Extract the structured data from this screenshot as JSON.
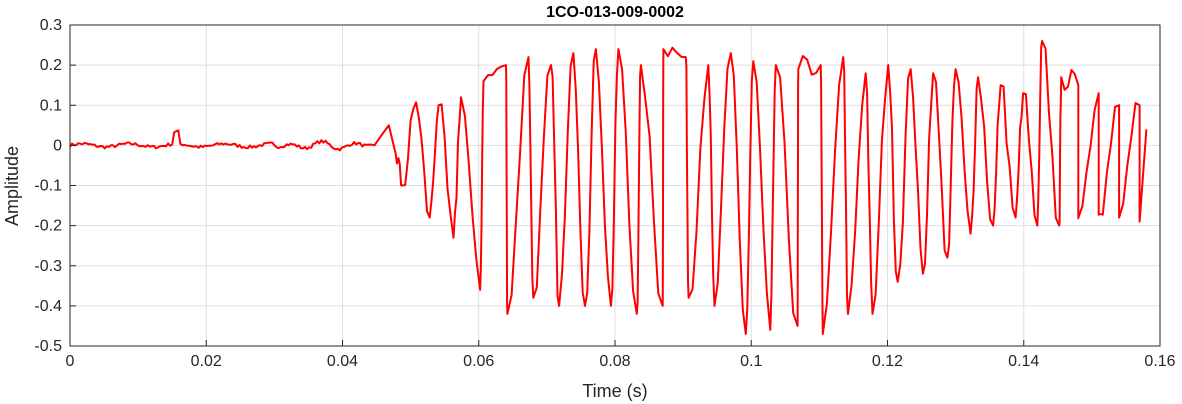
{
  "chart_data": {
    "type": "line",
    "title": "1CO-013-009-0002",
    "xlabel": "Time (s)",
    "ylabel": "Amplitude",
    "xlim": [
      0,
      0.16
    ],
    "ylim": [
      -0.5,
      0.3
    ],
    "xticks": [
      "0",
      "0.02",
      "0.04",
      "0.06",
      "0.08",
      "0.1",
      "0.12",
      "0.14",
      "0.16"
    ],
    "yticks": [
      "0.3",
      "0.2",
      "0.1",
      "0",
      "-0.1",
      "-0.2",
      "-0.3",
      "-0.4",
      "-0.5"
    ],
    "grid": true,
    "series_color": "#ff0000",
    "x_end": 0.158,
    "waveform_peaks": [
      {
        "x": 0.0508,
        "y": 0.107
      },
      {
        "x": 0.0541,
        "y": 0.1
      },
      {
        "x": 0.0574,
        "y": 0.12
      },
      {
        "x": 0.0607,
        "y": 0.16
      },
      {
        "x": 0.064,
        "y": 0.2
      },
      {
        "x": 0.0673,
        "y": 0.22
      },
      {
        "x": 0.0706,
        "y": 0.2
      },
      {
        "x": 0.0739,
        "y": 0.23
      },
      {
        "x": 0.0772,
        "y": 0.24
      },
      {
        "x": 0.0805,
        "y": 0.24
      },
      {
        "x": 0.0838,
        "y": 0.2
      },
      {
        "x": 0.0871,
        "y": 0.24
      },
      {
        "x": 0.0904,
        "y": 0.22
      },
      {
        "x": 0.0937,
        "y": 0.2
      },
      {
        "x": 0.097,
        "y": 0.23
      },
      {
        "x": 0.1003,
        "y": 0.21
      },
      {
        "x": 0.1036,
        "y": 0.2
      },
      {
        "x": 0.1069,
        "y": 0.19
      },
      {
        "x": 0.1102,
        "y": 0.2
      },
      {
        "x": 0.1135,
        "y": 0.22
      },
      {
        "x": 0.1168,
        "y": 0.18
      },
      {
        "x": 0.1201,
        "y": 0.2
      },
      {
        "x": 0.1234,
        "y": 0.19
      },
      {
        "x": 0.1267,
        "y": 0.18
      },
      {
        "x": 0.13,
        "y": 0.19
      },
      {
        "x": 0.1333,
        "y": 0.17
      },
      {
        "x": 0.1366,
        "y": 0.15
      },
      {
        "x": 0.1399,
        "y": 0.13
      },
      {
        "x": 0.1427,
        "y": 0.26
      },
      {
        "x": 0.1455,
        "y": 0.17
      },
      {
        "x": 0.148,
        "y": 0.15
      },
      {
        "x": 0.151,
        "y": 0.13
      },
      {
        "x": 0.154,
        "y": 0.1
      },
      {
        "x": 0.157,
        "y": 0.1
      }
    ],
    "waveform_troughs": [
      {
        "x": 0.0488,
        "y": -0.1
      },
      {
        "x": 0.0528,
        "y": -0.18
      },
      {
        "x": 0.0563,
        "y": -0.23
      },
      {
        "x": 0.0602,
        "y": -0.36
      },
      {
        "x": 0.0642,
        "y": -0.42
      },
      {
        "x": 0.068,
        "y": -0.38
      },
      {
        "x": 0.0718,
        "y": -0.4
      },
      {
        "x": 0.0756,
        "y": -0.4
      },
      {
        "x": 0.0794,
        "y": -0.4
      },
      {
        "x": 0.0832,
        "y": -0.42
      },
      {
        "x": 0.087,
        "y": -0.4
      },
      {
        "x": 0.0908,
        "y": -0.38
      },
      {
        "x": 0.0946,
        "y": -0.4
      },
      {
        "x": 0.0992,
        "y": -0.47
      },
      {
        "x": 0.1028,
        "y": -0.46
      },
      {
        "x": 0.1068,
        "y": -0.45
      },
      {
        "x": 0.1105,
        "y": -0.47
      },
      {
        "x": 0.1142,
        "y": -0.42
      },
      {
        "x": 0.1178,
        "y": -0.42
      },
      {
        "x": 0.1215,
        "y": -0.34
      },
      {
        "x": 0.1252,
        "y": -0.32
      },
      {
        "x": 0.1288,
        "y": -0.28
      },
      {
        "x": 0.1322,
        "y": -0.22
      },
      {
        "x": 0.1355,
        "y": -0.2
      },
      {
        "x": 0.1388,
        "y": -0.18
      },
      {
        "x": 0.142,
        "y": -0.2
      },
      {
        "x": 0.1452,
        "y": -0.2
      },
      {
        "x": 0.148,
        "y": -0.18
      },
      {
        "x": 0.151,
        "y": -0.17
      },
      {
        "x": 0.154,
        "y": -0.18
      },
      {
        "x": 0.157,
        "y": -0.19
      }
    ]
  }
}
